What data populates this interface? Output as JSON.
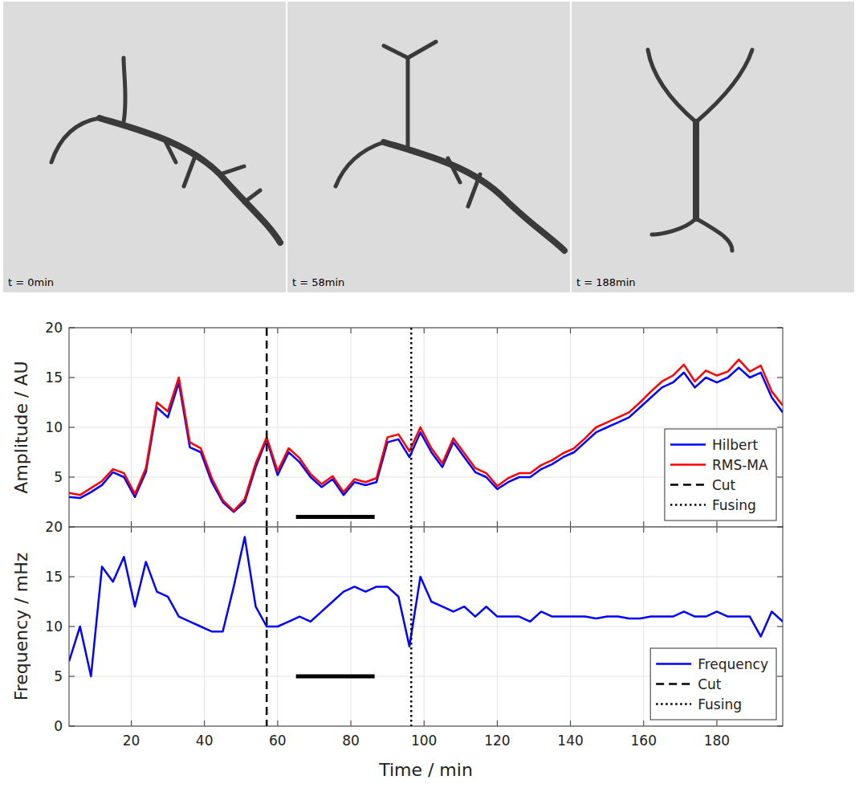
{
  "images": [
    {
      "label": "t = 0min"
    },
    {
      "label": "t = 58min"
    },
    {
      "label": "t = 188min"
    }
  ],
  "chart_data": [
    {
      "type": "line",
      "ylabel": "Amplitude / AU",
      "x": [
        3,
        6,
        9,
        12,
        15,
        18,
        21,
        24,
        27,
        30,
        33,
        36,
        39,
        42,
        45,
        48,
        51,
        54,
        57,
        60,
        63,
        66,
        69,
        72,
        75,
        78,
        81,
        84,
        87,
        90,
        93,
        96,
        99,
        102,
        105,
        108,
        111,
        114,
        117,
        120,
        123,
        126,
        129,
        132,
        135,
        138,
        141,
        144,
        147,
        150,
        153,
        156,
        159,
        162,
        165,
        168,
        171,
        174,
        177,
        180,
        183,
        186,
        189,
        192,
        195,
        198
      ],
      "series": [
        {
          "name": "Hilbert",
          "color": "#0000ff",
          "line_style": "solid",
          "values": [
            3.0,
            2.9,
            3.5,
            4.2,
            5.5,
            5.0,
            3.0,
            5.5,
            12.0,
            11.0,
            14.5,
            8.0,
            7.5,
            4.5,
            2.5,
            1.5,
            2.5,
            6.0,
            8.8,
            5.2,
            7.5,
            6.5,
            5.0,
            4.0,
            4.8,
            3.2,
            4.5,
            4.2,
            4.5,
            8.5,
            8.8,
            7.0,
            9.5,
            7.5,
            6.0,
            8.5,
            7.0,
            5.5,
            5.0,
            3.8,
            4.5,
            5.0,
            5.0,
            5.8,
            6.3,
            7.0,
            7.5,
            8.5,
            9.5,
            10.0,
            10.5,
            11.0,
            12.0,
            13.0,
            14.0,
            14.5,
            15.5,
            14.0,
            15.0,
            14.5,
            15.0,
            16.0,
            15.0,
            15.5,
            13.0,
            11.5
          ]
        },
        {
          "name": "RMS-MA",
          "color": "#ff0000",
          "line_style": "solid",
          "values": [
            3.4,
            3.2,
            3.9,
            4.6,
            5.8,
            5.4,
            3.3,
            5.9,
            12.5,
            11.6,
            15.0,
            8.5,
            7.9,
            4.9,
            2.7,
            1.6,
            2.8,
            6.4,
            9.0,
            5.6,
            7.9,
            6.9,
            5.3,
            4.3,
            5.1,
            3.5,
            4.8,
            4.5,
            4.9,
            9.0,
            9.3,
            7.6,
            10.0,
            7.9,
            6.4,
            8.9,
            7.4,
            5.9,
            5.4,
            4.1,
            4.9,
            5.4,
            5.4,
            6.2,
            6.7,
            7.4,
            7.9,
            8.9,
            10.0,
            10.5,
            11.0,
            11.5,
            12.5,
            13.6,
            14.6,
            15.2,
            16.3,
            14.6,
            15.7,
            15.2,
            15.6,
            16.8,
            15.6,
            16.2,
            13.6,
            12.2
          ]
        }
      ],
      "vlines": [
        {
          "name": "Cut",
          "x": 57,
          "line_style": "dashed"
        },
        {
          "name": "Fusing",
          "x": 96.5,
          "line_style": "dotted"
        }
      ],
      "scale_bars": [
        {
          "x0": 65,
          "x1": 86.5,
          "y": 1
        }
      ],
      "xlim": [
        3,
        198
      ],
      "xticks": [
        20,
        40,
        60,
        80,
        100,
        120,
        140,
        160,
        180
      ],
      "ylim": [
        0,
        20
      ],
      "yticks": [
        5,
        10,
        15,
        20
      ],
      "grid": true,
      "legend": "southeast",
      "tick_labels": "y"
    },
    {
      "type": "line",
      "ylabel": "Frequency / mHz",
      "xlabel": "Time / min",
      "x": [
        3,
        6,
        9,
        12,
        15,
        18,
        21,
        24,
        27,
        30,
        33,
        36,
        39,
        42,
        45,
        48,
        51,
        54,
        57,
        60,
        63,
        66,
        69,
        72,
        75,
        78,
        81,
        84,
        87,
        90,
        93,
        96,
        99,
        102,
        105,
        108,
        111,
        114,
        117,
        120,
        123,
        126,
        129,
        132,
        135,
        138,
        141,
        144,
        147,
        150,
        153,
        156,
        159,
        162,
        165,
        168,
        171,
        174,
        177,
        180,
        183,
        186,
        189,
        192,
        195,
        198
      ],
      "series": [
        {
          "name": "Frequency",
          "color": "#0000ff",
          "line_style": "solid",
          "values": [
            6.5,
            10.0,
            5.0,
            16.0,
            14.5,
            17.0,
            12.0,
            16.5,
            13.5,
            13.0,
            11.0,
            10.5,
            10.0,
            9.5,
            9.5,
            14.0,
            19.0,
            12.0,
            10.0,
            10.0,
            10.5,
            11.0,
            10.5,
            11.5,
            12.5,
            13.5,
            14.0,
            13.5,
            14.0,
            14.0,
            13.0,
            8.0,
            15.0,
            12.5,
            12.0,
            11.5,
            12.0,
            11.0,
            12.0,
            11.0,
            11.0,
            11.0,
            10.5,
            11.5,
            11.0,
            11.0,
            11.0,
            11.0,
            10.8,
            11.0,
            11.0,
            10.8,
            10.8,
            11.0,
            11.0,
            11.0,
            11.5,
            11.0,
            11.0,
            11.5,
            11.0,
            11.0,
            11.0,
            9.0,
            11.5,
            10.5
          ]
        }
      ],
      "vlines": [
        {
          "name": "Cut",
          "x": 57,
          "line_style": "dashed"
        },
        {
          "name": "Fusing",
          "x": 96.5,
          "line_style": "dotted"
        }
      ],
      "scale_bars": [
        {
          "x0": 65,
          "x1": 86.5,
          "y": 5
        }
      ],
      "xlim": [
        3,
        198
      ],
      "xticks": [
        20,
        40,
        60,
        80,
        100,
        120,
        140,
        160,
        180
      ],
      "ylim": [
        0,
        20
      ],
      "yticks": [
        0,
        5,
        10,
        15,
        20
      ],
      "grid": true,
      "legend": "southeast",
      "tick_labels": true
    }
  ]
}
